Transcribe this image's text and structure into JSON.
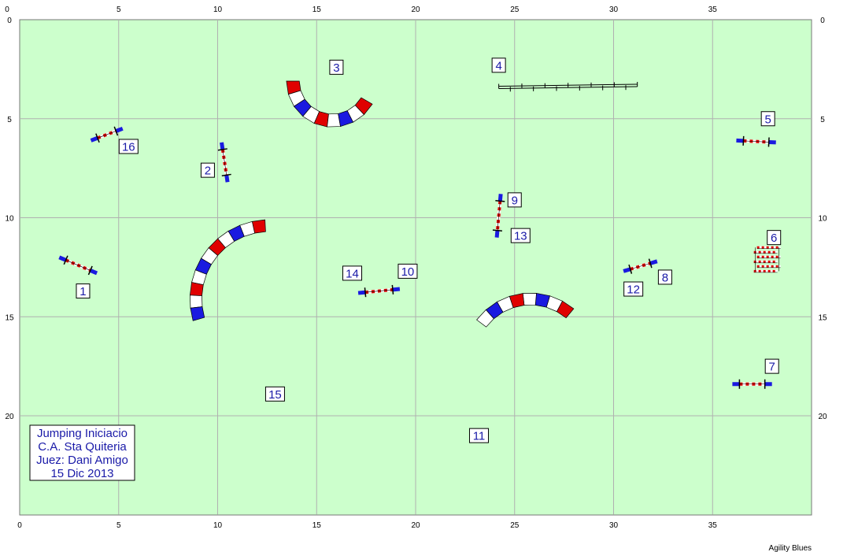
{
  "course": {
    "units": "m",
    "width": 40,
    "height": 25,
    "field_color": "#ccffcc",
    "grid_color": "#b0b0b0",
    "top_ticks": [
      0,
      5,
      10,
      15,
      20,
      25,
      30,
      35
    ],
    "bottom_ticks": [
      0,
      5,
      10,
      15,
      20,
      25,
      30,
      35
    ],
    "left_ticks": [
      0,
      5,
      10,
      15,
      20
    ],
    "right_ticks": [
      0,
      5,
      10,
      15,
      20
    ]
  },
  "colors": {
    "number_text": "#1a1aa8",
    "tunnel_red": "#e00000",
    "tunnel_blue": "#1a1ae0",
    "tunnel_white": "#ffffff",
    "bar_red": "#e00000",
    "wing_blue": "#1a1ae0"
  },
  "obstacles": [
    {
      "type": "jump",
      "from": [
        3.6,
        6.1
      ],
      "to": [
        5.2,
        5.5
      ]
    },
    {
      "type": "jump",
      "from": [
        10.2,
        6.2
      ],
      "to": [
        10.5,
        8.2
      ]
    },
    {
      "type": "tunnel",
      "center": [
        15.8,
        3.1
      ],
      "radius": 2.0,
      "start_angle": 180,
      "end_angle": 330,
      "width": 0.65
    },
    {
      "type": "walk",
      "from": [
        24.2,
        3.4
      ],
      "to": [
        31.2,
        3.3
      ]
    },
    {
      "type": "jump",
      "from": [
        36.2,
        6.1
      ],
      "to": [
        38.2,
        6.2
      ]
    },
    {
      "type": "weave",
      "x": 37.8,
      "y_top": 11.5,
      "y_bottom": 12.7,
      "count": 6
    },
    {
      "type": "jump",
      "from": [
        36.0,
        18.4
      ],
      "to": [
        38.0,
        18.4
      ]
    },
    {
      "type": "jump",
      "from": [
        30.5,
        12.7
      ],
      "to": [
        32.2,
        12.2
      ]
    },
    {
      "type": "jump",
      "from": [
        24.3,
        8.8
      ],
      "to": [
        24.1,
        11.0
      ]
    },
    {
      "type": "jump",
      "from": [
        17.1,
        13.8
      ],
      "to": [
        19.2,
        13.6
      ]
    },
    {
      "type": "tunnel",
      "center": [
        25.8,
        17.2
      ],
      "radius": 3.1,
      "start_angle": 50,
      "end_angle": 143,
      "width": 0.6
    },
    {
      "type": "jump",
      "from": [
        2.0,
        12.0
      ],
      "to": [
        3.9,
        12.8
      ]
    },
    {
      "type": "tunnel",
      "center": [
        12.6,
        14.1
      ],
      "radius": 3.7,
      "start_angle": 93,
      "end_angle": 196,
      "width": 0.6
    }
  ],
  "numbers": [
    {
      "label": "1",
      "x": 3.2,
      "y": 13.7
    },
    {
      "label": "2",
      "x": 9.5,
      "y": 7.6
    },
    {
      "label": "3",
      "x": 16.0,
      "y": 2.4
    },
    {
      "label": "4",
      "x": 24.2,
      "y": 2.3
    },
    {
      "label": "5",
      "x": 37.8,
      "y": 5.0
    },
    {
      "label": "6",
      "x": 38.1,
      "y": 11.0
    },
    {
      "label": "7",
      "x": 38.0,
      "y": 17.5
    },
    {
      "label": "8",
      "x": 32.6,
      "y": 13.0
    },
    {
      "label": "9",
      "x": 25.0,
      "y": 9.1
    },
    {
      "label": "10",
      "x": 19.6,
      "y": 12.7
    },
    {
      "label": "11",
      "x": 23.2,
      "y": 21.0
    },
    {
      "label": "12",
      "x": 31.0,
      "y": 13.6
    },
    {
      "label": "13",
      "x": 25.3,
      "y": 10.9
    },
    {
      "label": "14",
      "x": 16.8,
      "y": 12.8
    },
    {
      "label": "15",
      "x": 12.9,
      "y": 18.9
    },
    {
      "label": "16",
      "x": 5.5,
      "y": 6.4
    }
  ],
  "info": {
    "line1": "Jumping  Iniciacio",
    "line2": "C.A. Sta Quiteria",
    "line3": "Juez: Dani Amigo",
    "line4": "15 Dic 2013"
  },
  "credit": "Agility Blues"
}
